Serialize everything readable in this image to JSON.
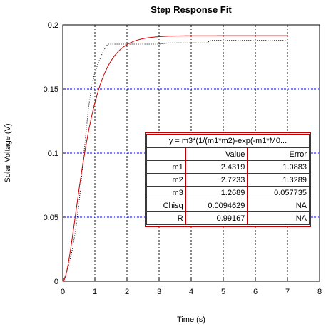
{
  "chart_data": {
    "type": "line",
    "title": "Step Response Fit",
    "xlabel": "Time (s)",
    "ylabel": "Solar Voltage (V)",
    "xlim": [
      0,
      8
    ],
    "ylim": [
      0,
      0.2
    ],
    "x_ticks": [
      "0",
      "1",
      "2",
      "3",
      "4",
      "5",
      "6",
      "7",
      "8"
    ],
    "y_ticks": [
      "0",
      "0.05",
      "0.1",
      "0.15",
      "0.2"
    ],
    "grid": true,
    "fit": {
      "equation": "y = m3*(1/(m1*m2)-exp(-m1*M0...",
      "params": {
        "m1": 2.4319,
        "m2": 2.7233,
        "m3": 1.2689
      },
      "x_range": [
        0,
        7
      ]
    },
    "measured": {
      "x": [
        0.0,
        0.1,
        0.2,
        0.3,
        0.4,
        0.5,
        0.6,
        0.7,
        0.8,
        0.9,
        1.0,
        1.1,
        1.2,
        1.3,
        1.4,
        1.6,
        1.8,
        2.0,
        2.3,
        2.6,
        3.0,
        3.3,
        4.5,
        4.6,
        4.7,
        7.0
      ],
      "y": [
        0.0,
        0.005,
        0.014,
        0.025,
        0.04,
        0.06,
        0.085,
        0.11,
        0.135,
        0.152,
        0.163,
        0.17,
        0.176,
        0.181,
        0.185,
        0.185,
        0.185,
        0.185,
        0.185,
        0.185,
        0.185,
        0.186,
        0.186,
        0.188,
        0.188,
        0.188
      ]
    },
    "table": {
      "header": [
        "",
        "Value",
        "Error"
      ],
      "rows": [
        [
          "m1",
          "2.4319",
          "1.0883"
        ],
        [
          "m2",
          "2.7233",
          "1.3289"
        ],
        [
          "m3",
          "1.2689",
          "0.057735"
        ],
        [
          "Chisq",
          "0.0094629",
          "NA"
        ],
        [
          "R",
          "0.99167",
          "NA"
        ]
      ]
    }
  },
  "colors": {
    "fit_curve": "#cc0000",
    "data_curve": "#000000",
    "grid": "#0000cc",
    "table_border": "#c00000"
  }
}
